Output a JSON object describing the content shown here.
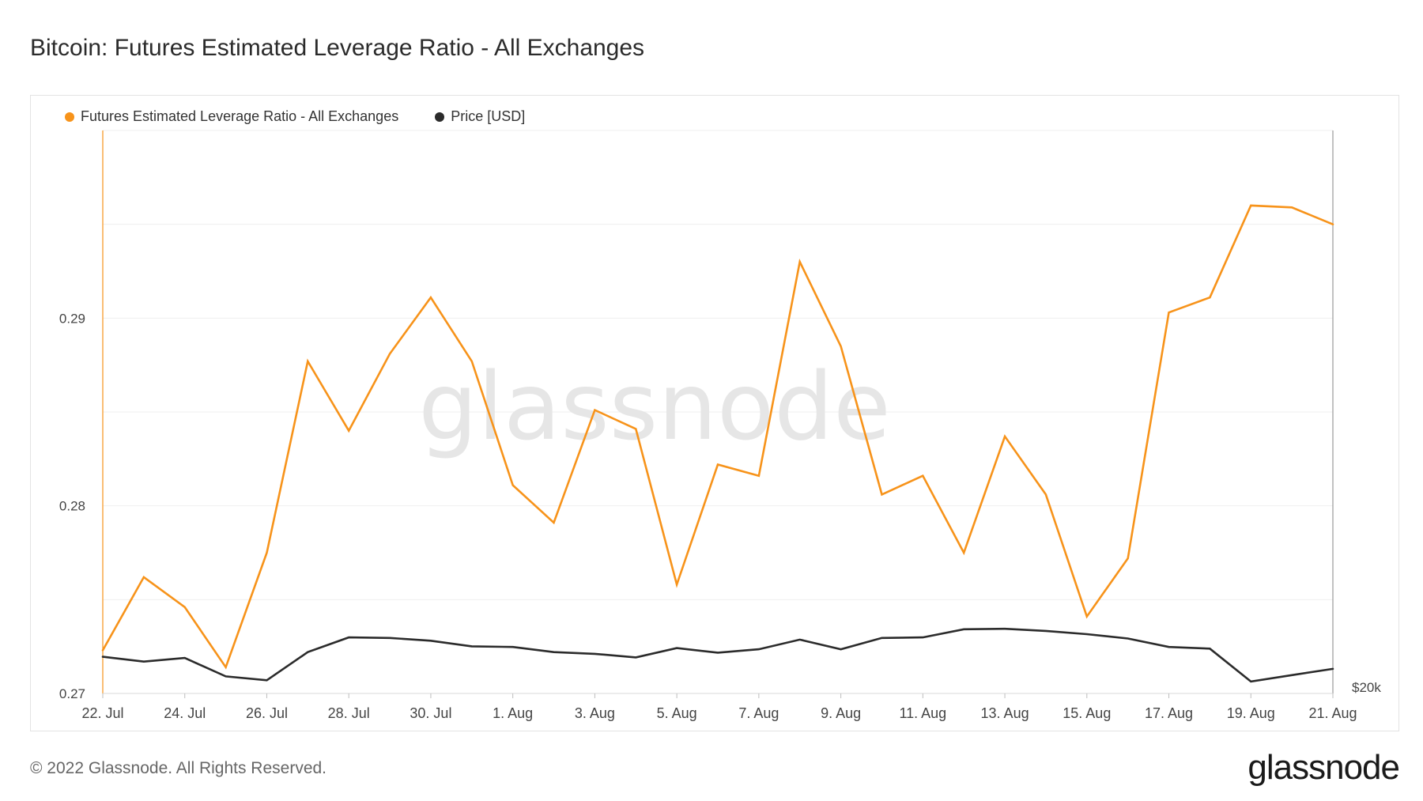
{
  "header": {
    "title": "Bitcoin: Futures Estimated Leverage Ratio - All Exchanges"
  },
  "footer": {
    "copyright": "© 2022 Glassnode. All Rights Reserved.",
    "brand": "glassnode"
  },
  "watermark": "glassnode",
  "colors": {
    "leverage": "#f7931a",
    "price": "#2b2b2b",
    "grid": "#efefef",
    "axis_text": "#444444"
  },
  "chart_data": {
    "type": "line",
    "title": "Bitcoin: Futures Estimated Leverage Ratio - All Exchanges",
    "x": [
      "22. Jul",
      "23. Jul",
      "24. Jul",
      "25. Jul",
      "26. Jul",
      "27. Jul",
      "28. Jul",
      "29. Jul",
      "30. Jul",
      "31. Jul",
      "1. Aug",
      "2. Aug",
      "3. Aug",
      "4. Aug",
      "5. Aug",
      "6. Aug",
      "7. Aug",
      "8. Aug",
      "9. Aug",
      "10. Aug",
      "11. Aug",
      "12. Aug",
      "13. Aug",
      "14. Aug",
      "15. Aug",
      "16. Aug",
      "17. Aug",
      "18. Aug",
      "19. Aug",
      "20. Aug",
      "21. Aug"
    ],
    "x_tick_labels": [
      "22. Jul",
      "24. Jul",
      "26. Jul",
      "28. Jul",
      "30. Jul",
      "1. Aug",
      "3. Aug",
      "5. Aug",
      "7. Aug",
      "9. Aug",
      "11. Aug",
      "13. Aug",
      "15. Aug",
      "17. Aug",
      "19. Aug",
      "21. Aug"
    ],
    "y_left": {
      "ticks": [
        "0.27",
        "0.28",
        "0.29"
      ],
      "ylim": [
        0.27,
        0.3
      ]
    },
    "y_right": {
      "ticks": [
        "$20k"
      ],
      "scale": "log",
      "ylim": [
        20000,
        160000
      ]
    },
    "legend": "top-left",
    "grid": true,
    "series": [
      {
        "name": "Futures Estimated Leverage Ratio - All Exchanges",
        "axis": "left",
        "values": [
          0.2723,
          0.2762,
          0.2746,
          0.2714,
          0.2775,
          0.2877,
          0.284,
          0.2881,
          0.2911,
          0.2877,
          0.2811,
          0.2791,
          0.2851,
          0.2841,
          0.2758,
          0.2822,
          0.2816,
          0.293,
          0.2885,
          0.2806,
          0.2816,
          0.2775,
          0.2837,
          0.2806,
          0.2741,
          0.2772,
          0.2903,
          0.2911,
          0.296,
          0.2959,
          0.295
        ]
      },
      {
        "name": "Price [USD]",
        "axis": "right",
        "values": [
          22900,
          22500,
          22800,
          21300,
          21000,
          23300,
          24600,
          24550,
          24300,
          23800,
          23750,
          23300,
          23150,
          22850,
          23650,
          23250,
          23550,
          24400,
          23550,
          24550,
          24600,
          25350,
          25400,
          25200,
          24900,
          24500,
          23750,
          23600,
          20900,
          21400,
          21900
        ]
      }
    ]
  }
}
